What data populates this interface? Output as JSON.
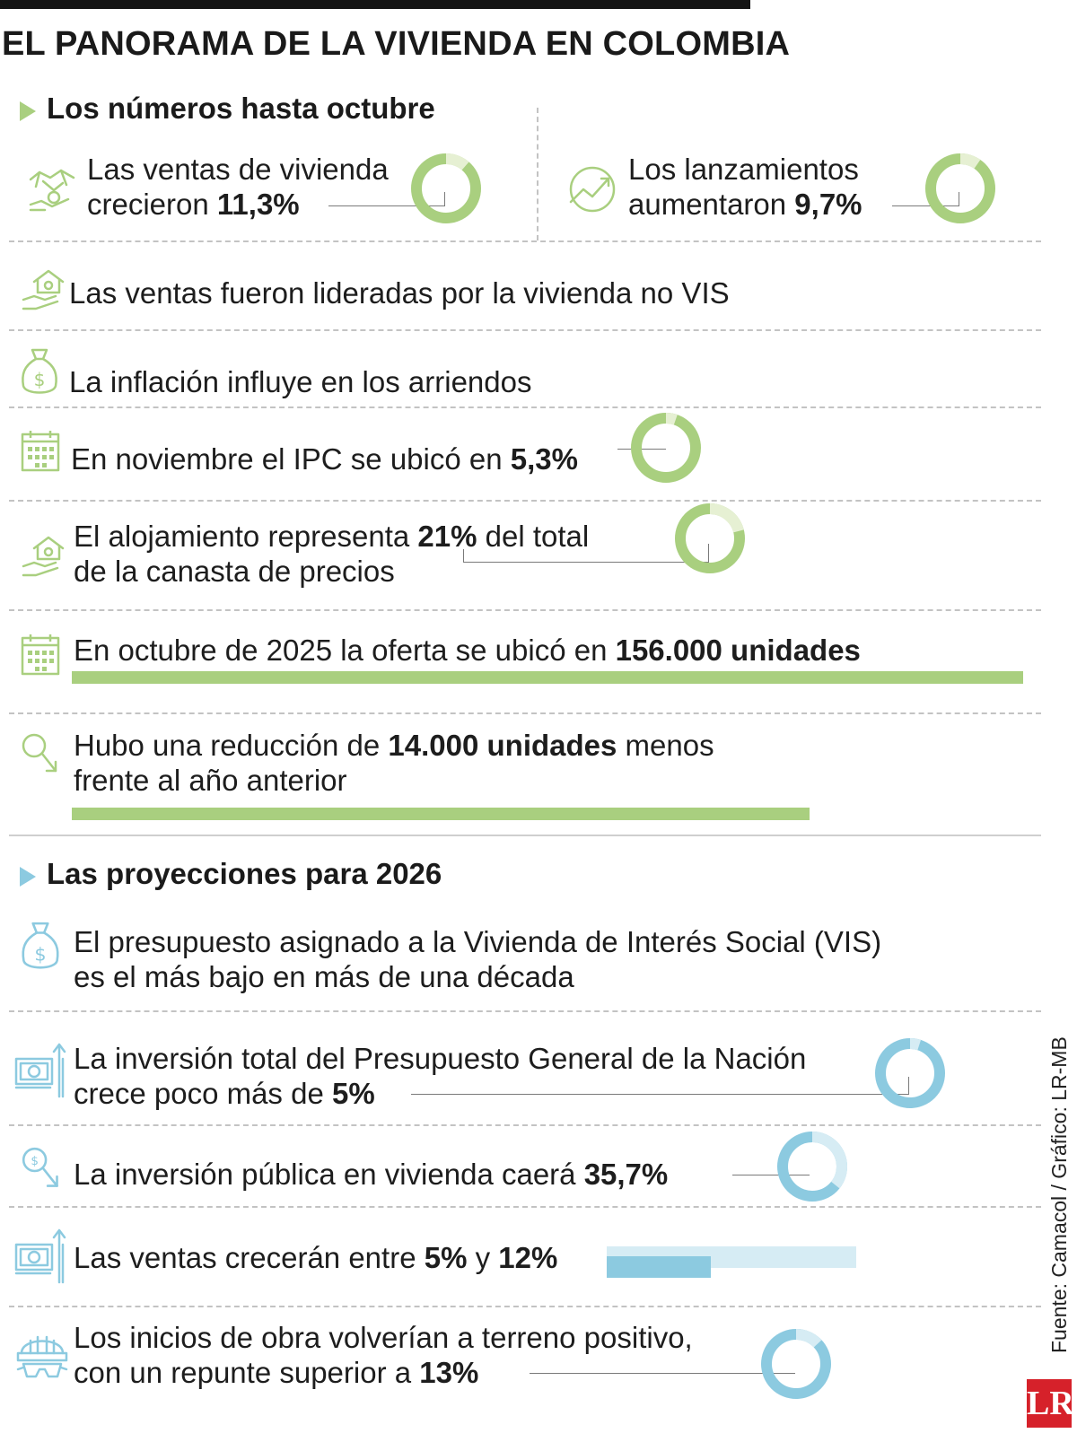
{
  "title": "EL PANORAMA DE LA VIVIENDA EN COLOMBIA",
  "colors": {
    "green": "#a9cf7f",
    "green_light": "#e6f0d3",
    "blue": "#8ccae0",
    "blue_light": "#d6ecf4",
    "dark": "#141414"
  },
  "section1": {
    "heading": "Los números hasta octubre",
    "sales": {
      "line1": "Las ventas de vivienda",
      "line2_pre": "crecieron ",
      "line2_bold": "11,3%",
      "value": 11.3,
      "icon": "handshake-icon"
    },
    "launches": {
      "line1": "Los lanzamientos",
      "line2_pre": "aumentaron ",
      "line2_bold": "9,7%",
      "value": 9.7,
      "icon": "growth-chart-icon"
    },
    "no_vis": {
      "text": "Las ventas fueron lideradas por la vivienda no VIS",
      "icon": "house-hand-icon"
    },
    "inflation": {
      "text": "La inflación influye en los arriendos",
      "icon": "money-bag-icon"
    },
    "ipc": {
      "pre": "En noviembre el IPC se ubicó en ",
      "bold": "5,3%",
      "value": 5.3,
      "icon": "calendar-icon"
    },
    "lodging": {
      "line1_pre": "El alojamiento representa ",
      "line1_bold": "21%",
      "line1_post": " del total",
      "line2": "de la canasta de precios",
      "value": 21,
      "icon": "house-hand-icon"
    },
    "offer": {
      "pre": "En octubre de 2025 la oferta se ubicó en ",
      "bold": "156.000 unidades",
      "value": 156000,
      "icon": "calendar-icon"
    },
    "reduction": {
      "line1_pre": "Hubo una reducción de ",
      "line1_bold": "14.000 unidades",
      "line1_post": " menos",
      "line2": "frente al año anterior",
      "value": 14000,
      "icon": "magnifier-down-icon"
    }
  },
  "section2": {
    "heading": "Las proyecciones para 2026",
    "budget_vis": {
      "line1": "El presupuesto asignado a la Vivienda de Interés Social (VIS)",
      "line2": "es el más bajo en más de una década",
      "icon": "money-bag-icon"
    },
    "pgn": {
      "line1": "La inversión total del Presupuesto General de la Nación",
      "line2_pre": "crece poco más de ",
      "line2_bold": "5%",
      "value": 5,
      "icon": "money-up-icon"
    },
    "public_inv": {
      "pre": "La inversión pública en vivienda caerá ",
      "bold": "35,7%",
      "value": 35.7,
      "icon": "magnifier-down-icon"
    },
    "sales_proj": {
      "pre": "Las ventas crecerán entre ",
      "bold1": "5%",
      "mid": " y ",
      "bold2": "12%",
      "low": 5,
      "high": 12,
      "icon": "money-up-icon"
    },
    "starts": {
      "line1": "Los inicios de obra volverían a terreno positivo,",
      "line2_pre": "con un repunte superior a ",
      "line2_bold": "13%",
      "value": 13,
      "icon": "hard-hat-icon"
    }
  },
  "source": "Fuente: Camacol / Gráfico: LR-MB",
  "logo": "LR"
}
